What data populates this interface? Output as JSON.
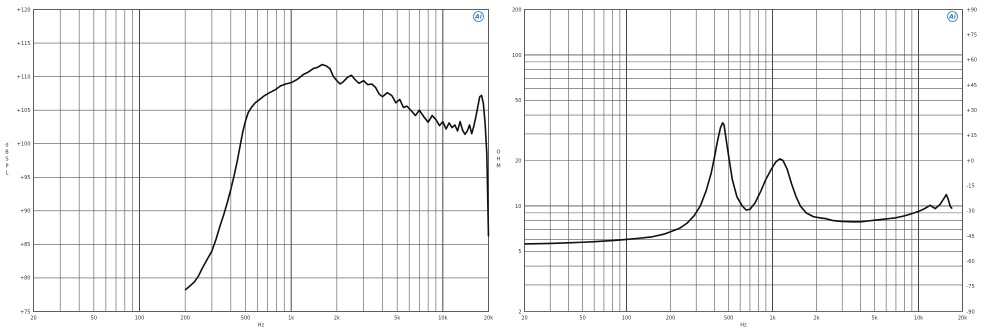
{
  "chart_data": [
    {
      "type": "line",
      "name": "frequency-response",
      "xscale": "log",
      "xlim": [
        20,
        20000
      ],
      "ylim": [
        75,
        120
      ],
      "x_ticks": [
        {
          "value": 20,
          "label": "20"
        },
        {
          "value": 50,
          "label": "50"
        },
        {
          "value": 100,
          "label": "100"
        },
        {
          "value": 200,
          "label": "200"
        },
        {
          "value": 500,
          "label": "500"
        },
        {
          "value": 1000,
          "label": "1k"
        },
        {
          "value": 2000,
          "label": "2k"
        },
        {
          "value": 5000,
          "label": "5k"
        },
        {
          "value": 10000,
          "label": "10k"
        },
        {
          "value": 20000,
          "label": "20k"
        }
      ],
      "y_ticks": [
        {
          "value": 120,
          "label": "+120"
        },
        {
          "value": 115,
          "label": "+115"
        },
        {
          "value": 110,
          "label": "+110"
        },
        {
          "value": 105,
          "label": "+105"
        },
        {
          "value": 100,
          "label": "+100"
        },
        {
          "value": 95,
          "label": "+95"
        },
        {
          "value": 90,
          "label": "+90"
        },
        {
          "value": 85,
          "label": "+85"
        },
        {
          "value": 80,
          "label": "+80"
        },
        {
          "value": 75,
          "label": "+75"
        }
      ],
      "xlabel": "Hz",
      "ylabel": "d B S P L",
      "grid": true,
      "logo": "Ai",
      "series": [
        {
          "color": "#111111",
          "points": [
            [
              200,
              78.2
            ],
            [
              215,
              78.8
            ],
            [
              230,
              79.4
            ],
            [
              245,
              80.3
            ],
            [
              260,
              81.5
            ],
            [
              280,
              82.8
            ],
            [
              300,
              84.0
            ],
            [
              320,
              85.8
            ],
            [
              340,
              87.8
            ],
            [
              360,
              89.5
            ],
            [
              380,
              91.3
            ],
            [
              400,
              93.2
            ],
            [
              420,
              95.2
            ],
            [
              440,
              97.3
            ],
            [
              460,
              99.6
            ],
            [
              480,
              101.8
            ],
            [
              500,
              103.4
            ],
            [
              520,
              104.6
            ],
            [
              550,
              105.5
            ],
            [
              580,
              106.1
            ],
            [
              620,
              106.6
            ],
            [
              670,
              107.2
            ],
            [
              720,
              107.6
            ],
            [
              780,
              108.0
            ],
            [
              850,
              108.6
            ],
            [
              920,
              108.9
            ],
            [
              1000,
              109.1
            ],
            [
              1100,
              109.6
            ],
            [
              1200,
              110.3
            ],
            [
              1300,
              110.7
            ],
            [
              1400,
              111.2
            ],
            [
              1500,
              111.4
            ],
            [
              1600,
              111.8
            ],
            [
              1700,
              111.6
            ],
            [
              1800,
              111.2
            ],
            [
              1900,
              110.0
            ],
            [
              2000,
              109.4
            ],
            [
              2100,
              108.9
            ],
            [
              2200,
              109.2
            ],
            [
              2350,
              109.9
            ],
            [
              2500,
              110.2
            ],
            [
              2650,
              109.5
            ],
            [
              2800,
              109.0
            ],
            [
              3000,
              109.4
            ],
            [
              3200,
              108.8
            ],
            [
              3400,
              108.9
            ],
            [
              3600,
              108.4
            ],
            [
              3800,
              107.4
            ],
            [
              4000,
              107.0
            ],
            [
              4300,
              107.6
            ],
            [
              4600,
              107.2
            ],
            [
              4900,
              106.1
            ],
            [
              5200,
              106.6
            ],
            [
              5500,
              105.4
            ],
            [
              5800,
              105.6
            ],
            [
              6200,
              104.9
            ],
            [
              6600,
              104.2
            ],
            [
              7000,
              105.0
            ],
            [
              7500,
              104.0
            ],
            [
              8000,
              103.2
            ],
            [
              8500,
              104.2
            ],
            [
              9000,
              103.6
            ],
            [
              9500,
              102.7
            ],
            [
              10000,
              103.3
            ],
            [
              10500,
              102.2
            ],
            [
              11000,
              103.1
            ],
            [
              11500,
              102.4
            ],
            [
              12000,
              102.8
            ],
            [
              12500,
              101.9
            ],
            [
              13000,
              103.3
            ],
            [
              13500,
              102.0
            ],
            [
              14000,
              101.4
            ],
            [
              14500,
              101.9
            ],
            [
              15000,
              102.8
            ],
            [
              15500,
              101.5
            ],
            [
              16000,
              102.6
            ],
            [
              16500,
              104.0
            ],
            [
              17000,
              105.5
            ],
            [
              17500,
              107.0
            ],
            [
              18000,
              107.2
            ],
            [
              18500,
              106.0
            ],
            [
              19000,
              103.0
            ],
            [
              19500,
              98.5
            ],
            [
              20000,
              86.2
            ]
          ]
        }
      ]
    },
    {
      "type": "line",
      "name": "impedance",
      "xscale": "log",
      "xlim": [
        20,
        20000
      ],
      "yscale": "log",
      "ylim": [
        2,
        200
      ],
      "y2lim": [
        -90,
        90
      ],
      "x_ticks": [
        {
          "value": 20,
          "label": "20"
        },
        {
          "value": 50,
          "label": "50"
        },
        {
          "value": 100,
          "label": "100"
        },
        {
          "value": 200,
          "label": "200"
        },
        {
          "value": 500,
          "label": "500"
        },
        {
          "value": 1000,
          "label": "1k"
        },
        {
          "value": 2000,
          "label": "2k"
        },
        {
          "value": 5000,
          "label": "5k"
        },
        {
          "value": 10000,
          "label": "10k"
        },
        {
          "value": 20000,
          "label": "20k"
        }
      ],
      "y_ticks": [
        {
          "value": 200,
          "label": "200"
        },
        {
          "value": 100,
          "label": "100"
        },
        {
          "value": 50,
          "label": "50"
        },
        {
          "value": 20,
          "label": "20"
        },
        {
          "value": 10,
          "label": "10"
        },
        {
          "value": 5,
          "label": "5"
        },
        {
          "value": 2,
          "label": "2"
        }
      ],
      "y2_ticks": [
        {
          "value": 90,
          "label": "+90"
        },
        {
          "value": 75,
          "label": "+75"
        },
        {
          "value": 60,
          "label": "+60"
        },
        {
          "value": 45,
          "label": "+45"
        },
        {
          "value": 30,
          "label": "+30"
        },
        {
          "value": 15,
          "label": "+15"
        },
        {
          "value": 0,
          "label": "+0"
        },
        {
          "value": -15,
          "label": "-15"
        },
        {
          "value": -30,
          "label": "-30"
        },
        {
          "value": -45,
          "label": "-45"
        },
        {
          "value": -60,
          "label": "-60"
        },
        {
          "value": -75,
          "label": "-75"
        },
        {
          "value": -90,
          "label": "-90"
        }
      ],
      "xlabel": "Hz",
      "ylabel": "O H M",
      "grid": true,
      "logo": "Ai",
      "series": [
        {
          "color": "#111111",
          "points": [
            [
              20,
              5.6
            ],
            [
              30,
              5.65
            ],
            [
              40,
              5.7
            ],
            [
              50,
              5.75
            ],
            [
              60,
              5.8
            ],
            [
              70,
              5.85
            ],
            [
              80,
              5.9
            ],
            [
              100,
              6.0
            ],
            [
              120,
              6.1
            ],
            [
              150,
              6.25
            ],
            [
              180,
              6.5
            ],
            [
              200,
              6.75
            ],
            [
              230,
              7.1
            ],
            [
              260,
              7.7
            ],
            [
              290,
              8.6
            ],
            [
              320,
              10.0
            ],
            [
              350,
              12.5
            ],
            [
              380,
              16.5
            ],
            [
              400,
              21.0
            ],
            [
              420,
              27.0
            ],
            [
              440,
              33.0
            ],
            [
              455,
              35.5
            ],
            [
              465,
              34.5
            ],
            [
              480,
              28.0
            ],
            [
              500,
              21.5
            ],
            [
              530,
              15.0
            ],
            [
              570,
              11.5
            ],
            [
              620,
              10.0
            ],
            [
              660,
              9.4
            ],
            [
              700,
              9.5
            ],
            [
              760,
              10.5
            ],
            [
              830,
              12.5
            ],
            [
              900,
              15.0
            ],
            [
              980,
              17.5
            ],
            [
              1050,
              19.5
            ],
            [
              1120,
              20.5
            ],
            [
              1180,
              20.0
            ],
            [
              1260,
              17.5
            ],
            [
              1350,
              14.0
            ],
            [
              1450,
              11.5
            ],
            [
              1550,
              10.0
            ],
            [
              1700,
              9.0
            ],
            [
              1900,
              8.5
            ],
            [
              2100,
              8.35
            ],
            [
              2300,
              8.25
            ],
            [
              2600,
              8.0
            ],
            [
              3000,
              7.9
            ],
            [
              3500,
              7.85
            ],
            [
              4000,
              7.85
            ],
            [
              4500,
              7.95
            ],
            [
              5000,
              8.05
            ],
            [
              6000,
              8.2
            ],
            [
              7000,
              8.35
            ],
            [
              8000,
              8.6
            ],
            [
              9000,
              8.9
            ],
            [
              10000,
              9.2
            ],
            [
              11000,
              9.6
            ],
            [
              12000,
              10.1
            ],
            [
              13000,
              9.6
            ],
            [
              14000,
              10.2
            ],
            [
              15000,
              11.3
            ],
            [
              15500,
              11.9
            ],
            [
              16000,
              11.0
            ],
            [
              16500,
              9.9
            ],
            [
              17000,
              9.6
            ]
          ]
        }
      ]
    }
  ]
}
